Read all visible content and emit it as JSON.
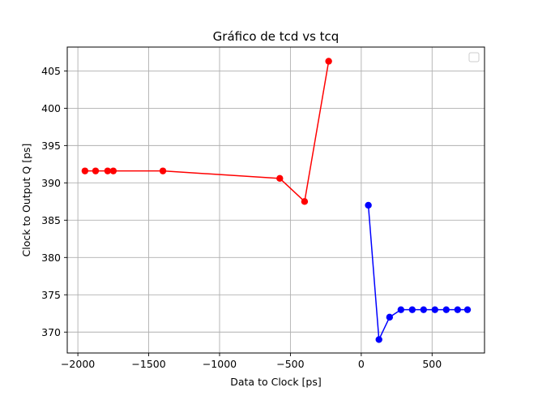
{
  "chart_data": {
    "type": "line",
    "title": "Gráfico de tcd vs tcq",
    "xlabel": "Data to Clock [ps]",
    "ylabel": "Clock to Output Q [ps]",
    "xlim": [
      -2075,
      870
    ],
    "ylim": [
      367.2,
      408.2
    ],
    "xticks": [
      -2000,
      -1500,
      -1000,
      -500,
      0,
      500
    ],
    "xtick_labels": [
      "−2000",
      "−1500",
      "−1000",
      "−500",
      "0",
      "500"
    ],
    "yticks": [
      370,
      375,
      380,
      385,
      390,
      395,
      400,
      405
    ],
    "ytick_labels": [
      "370",
      "375",
      "380",
      "385",
      "390",
      "395",
      "400",
      "405"
    ],
    "grid": true,
    "legend": {
      "placement": "top-right",
      "entries": []
    },
    "series": [
      {
        "color": "#ff0000",
        "marker": "circle",
        "points": [
          [
            -1950,
            391.6
          ],
          [
            -1875,
            391.6
          ],
          [
            -1790,
            391.6
          ],
          [
            -1750,
            391.6
          ],
          [
            -1400,
            391.6
          ],
          [
            -575,
            390.6
          ],
          [
            -400,
            387.5
          ],
          [
            -230,
            406.3
          ]
        ]
      },
      {
        "color": "#0000ff",
        "marker": "circle",
        "points": [
          [
            50,
            387.0
          ],
          [
            125,
            369.0
          ],
          [
            200,
            372.0
          ],
          [
            280,
            373.0
          ],
          [
            360,
            373.0
          ],
          [
            440,
            373.0
          ],
          [
            520,
            373.0
          ],
          [
            600,
            373.0
          ],
          [
            680,
            373.0
          ],
          [
            750,
            373.0
          ]
        ]
      }
    ]
  }
}
